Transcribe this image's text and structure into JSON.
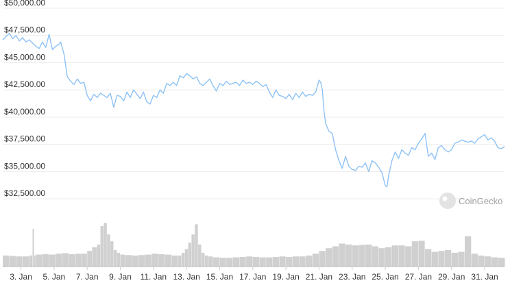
{
  "chart_data": {
    "type": "line",
    "title": "",
    "xlabel": "",
    "ylabel": "",
    "ylim": [
      31000,
      50000
    ],
    "y_ticks": [
      {
        "value": 32500,
        "label": "$32,500.00"
      },
      {
        "value": 35000,
        "label": "$35,000.00"
      },
      {
        "value": 37500,
        "label": "$37,500.00"
      },
      {
        "value": 40000,
        "label": "$40,000.00"
      },
      {
        "value": 42500,
        "label": "$42,500.00"
      },
      {
        "value": 45000,
        "label": "$45,000.00"
      },
      {
        "value": 47500,
        "label": "$47,500.00"
      },
      {
        "value": 50000,
        "label": "$50,000.00"
      }
    ],
    "xlim": [
      1.9,
      32.2
    ],
    "x_ticks": [
      {
        "value": 3,
        "label": "3. Jan"
      },
      {
        "value": 5,
        "label": "5. Jan"
      },
      {
        "value": 7,
        "label": "7. Jan"
      },
      {
        "value": 9,
        "label": "9. Jan"
      },
      {
        "value": 11,
        "label": "11. Jan"
      },
      {
        "value": 13,
        "label": "13. Jan"
      },
      {
        "value": 15,
        "label": "15. Jan"
      },
      {
        "value": 17,
        "label": "17. Jan"
      },
      {
        "value": 19,
        "label": "19. Jan"
      },
      {
        "value": 21,
        "label": "21. Jan"
      },
      {
        "value": 23,
        "label": "23. Jan"
      },
      {
        "value": 25,
        "label": "25. Jan"
      },
      {
        "value": 27,
        "label": "27. Jan"
      },
      {
        "value": 29,
        "label": "29. Jan"
      },
      {
        "value": 31,
        "label": "31. Jan"
      }
    ],
    "grid": true,
    "legend": "none",
    "colors": {
      "price_line": "#8dc2f5",
      "volume_bar": "#d0d0d0",
      "grid": "#ececec",
      "axis": "#cccccc"
    },
    "series": [
      {
        "x": [
          1.9,
          2.1,
          2.3,
          2.5,
          2.7,
          2.9,
          3.1,
          3.3,
          3.5,
          3.7,
          3.9,
          4.1,
          4.3,
          4.5,
          4.7,
          4.9,
          5.1,
          5.3,
          5.4,
          5.5,
          5.6,
          5.8,
          6.0,
          6.2,
          6.4,
          6.6,
          6.8,
          7.0,
          7.2,
          7.4,
          7.6,
          7.8,
          8.0,
          8.2,
          8.4,
          8.6,
          8.8,
          9.0,
          9.2,
          9.4,
          9.6,
          9.8,
          10.0,
          10.2,
          10.4,
          10.6,
          10.8,
          11.0,
          11.2,
          11.4,
          11.6,
          11.8,
          12.0,
          12.2,
          12.4,
          12.6,
          12.8,
          13.0,
          13.2,
          13.4,
          13.6,
          13.8,
          14.0,
          14.2,
          14.4,
          14.6,
          14.8,
          15.0,
          15.2,
          15.4,
          15.6,
          15.8,
          16.0,
          16.2,
          16.4,
          16.6,
          16.8,
          17.0,
          17.2,
          17.4,
          17.6,
          17.8,
          18.0,
          18.2,
          18.4,
          18.6,
          18.8,
          19.0,
          19.2,
          19.4,
          19.6,
          19.8,
          20.0,
          20.2,
          20.4,
          20.6,
          20.8,
          21.0,
          21.1,
          21.2,
          21.3,
          21.4,
          21.6,
          21.8,
          22.0,
          22.2,
          22.4,
          22.6,
          22.8,
          23.0,
          23.2,
          23.4,
          23.6,
          23.8,
          24.0,
          24.2,
          24.4,
          24.6,
          24.8,
          25.0,
          25.1,
          25.2,
          25.4,
          25.6,
          25.8,
          26.0,
          26.2,
          26.4,
          26.6,
          26.8,
          27.0,
          27.2,
          27.4,
          27.6,
          27.8,
          28.0,
          28.2,
          28.4,
          28.6,
          28.8,
          29.0,
          29.2,
          29.4,
          29.6,
          29.8,
          30.0,
          30.2,
          30.4,
          30.6,
          30.8,
          31.0,
          31.2,
          31.4,
          31.6,
          31.8,
          32.0,
          32.2
        ],
        "values": [
          47100,
          47400,
          47700,
          47200,
          47500,
          47000,
          47300,
          46900,
          47100,
          46800,
          46500,
          46300,
          46900,
          46400,
          47600,
          46200,
          46500,
          46700,
          46900,
          46300,
          45800,
          43700,
          43300,
          43000,
          43500,
          43100,
          43200,
          42000,
          41500,
          42100,
          41800,
          42200,
          42000,
          41800,
          42200,
          40900,
          42000,
          41900,
          41500,
          42300,
          41800,
          42500,
          42100,
          41700,
          42300,
          41400,
          41200,
          42000,
          41800,
          42500,
          42200,
          43100,
          42900,
          43200,
          42900,
          43800,
          43600,
          44000,
          43800,
          43500,
          43700,
          43100,
          42900,
          43200,
          43500,
          42900,
          42400,
          43100,
          42900,
          43300,
          43000,
          43100,
          43200,
          42900,
          43400,
          43100,
          43200,
          43000,
          43300,
          43100,
          42800,
          43000,
          42300,
          41800,
          42500,
          42000,
          41900,
          41700,
          42100,
          41600,
          42200,
          41800,
          42300,
          41900,
          42100,
          42000,
          42300,
          43400,
          43200,
          42500,
          40500,
          39400,
          38700,
          38500,
          37000,
          36000,
          35300,
          36400,
          35500,
          35200,
          35100,
          35500,
          35400,
          35800,
          35000,
          36000,
          35800,
          35400,
          34900,
          33700,
          33600,
          34600,
          36000,
          36800,
          36200,
          37000,
          36700,
          36500,
          37200,
          37000,
          37600,
          38000,
          38500,
          36400,
          36700,
          36100,
          37200,
          37400,
          37000,
          36800,
          37000,
          37600,
          37700,
          37900,
          37800,
          37700,
          37800,
          37600,
          38000,
          38200,
          38400,
          37900,
          38100,
          37800,
          37200,
          37100,
          37300
        ]
      }
    ],
    "volume": {
      "ylim": [
        0,
        100
      ],
      "x": [
        1.9,
        2.3,
        2.7,
        3.1,
        3.5,
        3.7,
        3.8,
        3.9,
        4.3,
        4.7,
        5.1,
        5.5,
        5.9,
        6.3,
        6.7,
        7.0,
        7.3,
        7.6,
        7.8,
        8.0,
        8.2,
        8.4,
        8.6,
        8.8,
        9.0,
        9.3,
        9.7,
        10.1,
        10.5,
        10.9,
        11.3,
        11.7,
        12.1,
        12.5,
        12.7,
        12.9,
        13.1,
        13.3,
        13.5,
        13.7,
        13.9,
        14.1,
        14.3,
        14.6,
        15.0,
        15.4,
        15.8,
        16.2,
        16.6,
        17.0,
        17.4,
        17.8,
        18.2,
        18.6,
        19.0,
        19.4,
        19.8,
        20.2,
        20.6,
        21.0,
        21.4,
        21.8,
        22.2,
        22.6,
        23.0,
        23.4,
        23.8,
        24.2,
        24.6,
        25.0,
        25.4,
        25.8,
        26.2,
        26.6,
        27.0,
        27.4,
        27.8,
        28.2,
        28.6,
        29.0,
        29.4,
        29.8,
        30.2,
        30.6,
        31.0,
        31.4,
        31.8,
        32.2
      ],
      "values": [
        24,
        23,
        22,
        22,
        24,
        82,
        24,
        26,
        27,
        26,
        28,
        29,
        27,
        28,
        28,
        34,
        42,
        48,
        88,
        95,
        70,
        55,
        36,
        30,
        26,
        25,
        24,
        25,
        26,
        28,
        27,
        26,
        24,
        24,
        30,
        38,
        52,
        70,
        92,
        48,
        30,
        24,
        22,
        20,
        19,
        19,
        20,
        21,
        22,
        21,
        20,
        20,
        21,
        22,
        21,
        22,
        22,
        24,
        28,
        34,
        40,
        44,
        50,
        48,
        46,
        47,
        48,
        44,
        40,
        42,
        46,
        46,
        44,
        55,
        56,
        38,
        32,
        34,
        36,
        30,
        32,
        66,
        28,
        24,
        22,
        20,
        19,
        18
      ]
    },
    "watermark": "CoinGecko"
  }
}
